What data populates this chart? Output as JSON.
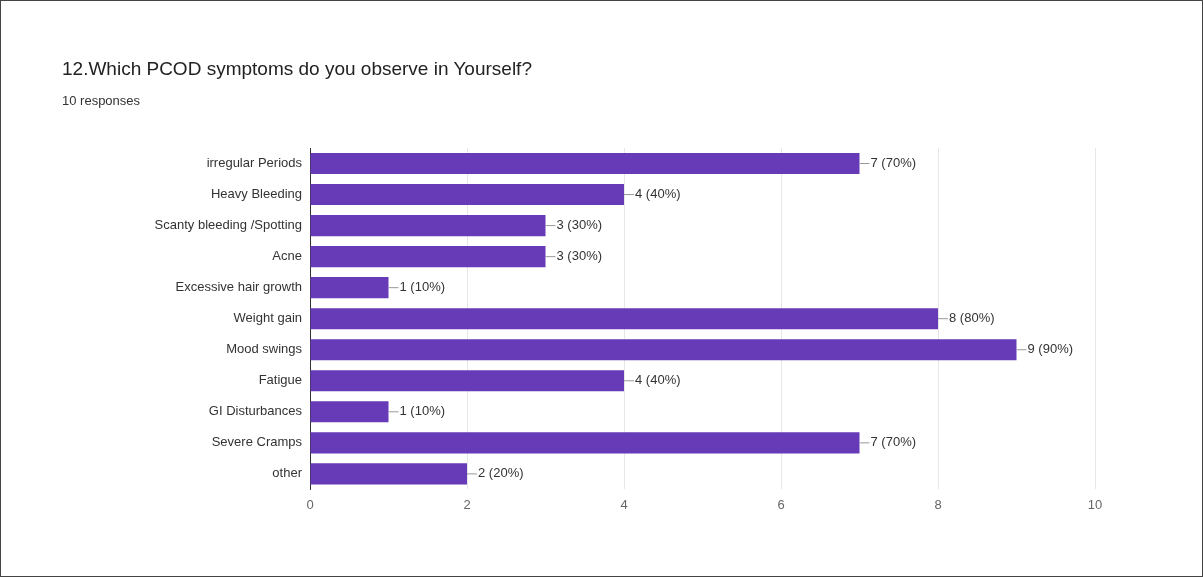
{
  "chart_data": {
    "type": "bar",
    "orientation": "horizontal",
    "title": "12.Which PCOD symptoms do you observe in Yourself?",
    "subtitle": "10 responses",
    "categories": [
      "irregular Periods",
      "Heavy Bleeding",
      "Scanty bleeding /Spotting",
      "Acne",
      "Excessive hair growth",
      "Weight gain",
      "Mood swings",
      "Fatigue",
      "GI Disturbances",
      "Severe Cramps",
      "other"
    ],
    "values": [
      7,
      4,
      3,
      3,
      1,
      8,
      9,
      4,
      1,
      7,
      2
    ],
    "value_labels": [
      "7 (70%)",
      "4 (40%)",
      "3 (30%)",
      "3 (30%)",
      "1 (10%)",
      "8 (80%)",
      "9 (90%)",
      "4 (40%)",
      "1 (10%)",
      "7 (70%)",
      "2 (20%)"
    ],
    "color": "#673ab7",
    "xlim": [
      0,
      10
    ],
    "xticks": [
      0,
      2,
      4,
      6,
      8,
      10
    ],
    "grid": "x"
  }
}
